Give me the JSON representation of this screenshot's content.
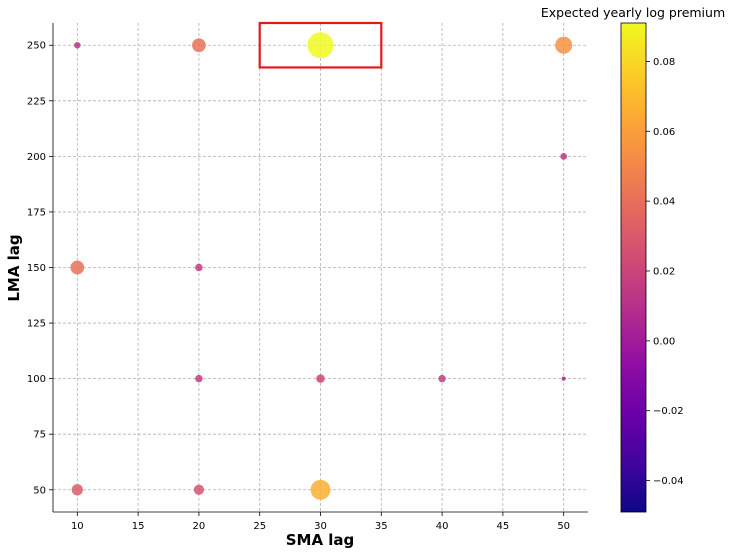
{
  "chart_data": {
    "type": "scatter",
    "xlabel": "SMA lag",
    "ylabel": "LMA lag",
    "xlim": [
      8,
      52
    ],
    "ylim": [
      40,
      260
    ],
    "xticks": [
      10,
      15,
      20,
      25,
      30,
      35,
      40,
      45,
      50
    ],
    "yticks": [
      50,
      75,
      100,
      125,
      150,
      175,
      200,
      225,
      250
    ],
    "grid": true,
    "colorbar": {
      "title": "Expected yearly log premium",
      "colormap": "plasma",
      "range": [
        -0.049,
        0.091
      ],
      "ticks": [
        "0.08",
        "0.06",
        "0.04",
        "0.02",
        "0.00",
        "−0.02",
        "−0.04"
      ],
      "tick_values": [
        0.08,
        0.06,
        0.04,
        0.02,
        0.0,
        -0.02,
        -0.04
      ]
    },
    "marker_size_encodes": "expected yearly log premium",
    "points": [
      {
        "x": 10,
        "y": 250,
        "value": 0.012
      },
      {
        "x": 20,
        "y": 250,
        "value": 0.041
      },
      {
        "x": 30,
        "y": 250,
        "value": 0.091
      },
      {
        "x": 50,
        "y": 250,
        "value": 0.055
      },
      {
        "x": 50,
        "y": 200,
        "value": 0.013
      },
      {
        "x": 10,
        "y": 150,
        "value": 0.041
      },
      {
        "x": 20,
        "y": 150,
        "value": 0.016
      },
      {
        "x": 20,
        "y": 100,
        "value": 0.016
      },
      {
        "x": 30,
        "y": 100,
        "value": 0.02
      },
      {
        "x": 40,
        "y": 100,
        "value": 0.016
      },
      {
        "x": 50,
        "y": 100,
        "value": 0.002
      },
      {
        "x": 10,
        "y": 50,
        "value": 0.031
      },
      {
        "x": 20,
        "y": 50,
        "value": 0.027
      },
      {
        "x": 30,
        "y": 50,
        "value": 0.066
      }
    ],
    "highlight_box": {
      "x": [
        25,
        35
      ],
      "y": [
        240,
        260
      ],
      "color": "#e31a1c"
    }
  }
}
